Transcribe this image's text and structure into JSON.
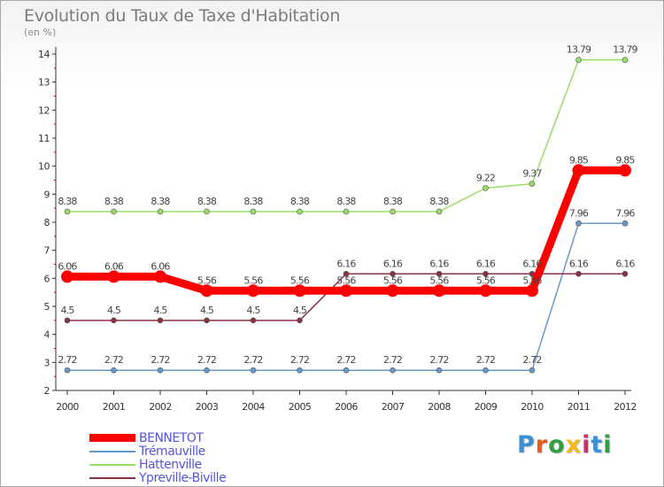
{
  "header": {
    "title": "Evolution du Taux de Taxe d'Habitation",
    "subtitle": "(en %)"
  },
  "logo": {
    "text": "Proxiti",
    "letter_colors": [
      "#3b8fd4",
      "#e8591e",
      "#2e9e3f",
      "#f2b81c",
      "#c7326b",
      "#3b8fd4",
      "#2e9e3f"
    ]
  },
  "chart_data": {
    "type": "line",
    "x": [
      "2000",
      "2001",
      "2002",
      "2003",
      "2004",
      "2005",
      "2006",
      "2007",
      "2008",
      "2009",
      "2010",
      "2011",
      "2012"
    ],
    "ylim": [
      2,
      14
    ],
    "yticks": [
      2,
      3,
      4,
      5,
      6,
      7,
      8,
      9,
      10,
      11,
      12,
      13,
      14
    ],
    "title": "Evolution du Taux de Taxe d'Habitation",
    "ylabel": "(en %)",
    "grid": false,
    "legend_position": "bottom-left",
    "series": [
      {
        "name": "BENNETOT",
        "color": "#ff0000",
        "values": [
          6.06,
          6.06,
          6.06,
          5.56,
          5.56,
          5.56,
          5.56,
          5.56,
          5.56,
          5.56,
          5.56,
          9.85,
          9.85
        ],
        "labels": [
          "6.06",
          "6.06",
          "6.06",
          "5.56",
          "5.56",
          "5.56",
          "5.56",
          "5.56",
          "5.56",
          "5.56",
          "5.56",
          "9.85",
          "9.85"
        ]
      },
      {
        "name": "Trémauville",
        "color": "#6699cc",
        "values": [
          2.72,
          2.72,
          2.72,
          2.72,
          2.72,
          2.72,
          2.72,
          2.72,
          2.72,
          2.72,
          2.72,
          7.96,
          7.96
        ],
        "labels": [
          "2.72",
          "2.72",
          "2.72",
          "2.72",
          "2.72",
          "2.72",
          "2.72",
          "2.72",
          "2.72",
          "2.72",
          "2.72",
          "7.96",
          "7.96"
        ]
      },
      {
        "name": "Hattenville",
        "color": "#99dd66",
        "values": [
          8.38,
          8.38,
          8.38,
          8.38,
          8.38,
          8.38,
          8.38,
          8.38,
          8.38,
          9.22,
          9.37,
          13.79,
          13.79
        ],
        "labels": [
          "8.38",
          "8.38",
          "8.38",
          "8.38",
          "8.38",
          "8.38",
          "8.38",
          "8.38",
          "8.38",
          "9.22",
          "9.37",
          "13.79",
          "13.79"
        ]
      },
      {
        "name": "Ypreville-Biville",
        "color": "#883344",
        "values": [
          4.5,
          4.5,
          4.5,
          4.5,
          4.5,
          4.5,
          6.16,
          6.16,
          6.16,
          6.16,
          6.16,
          6.16,
          6.16
        ],
        "labels": [
          "4.5",
          "4.5",
          "4.5",
          "4.5",
          "4.5",
          "4.5",
          "6.16",
          "6.16",
          "6.16",
          "6.16",
          "6.16",
          "6.16",
          "6.16"
        ]
      }
    ]
  }
}
